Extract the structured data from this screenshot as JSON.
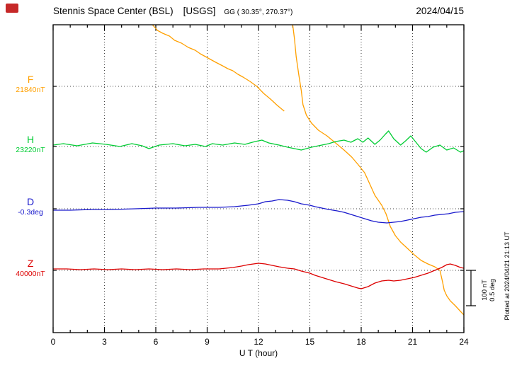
{
  "header": {
    "station": "Stennis Space Center (BSL)",
    "agency": "[USGS]",
    "coords": "GG ( 30.35°, 270.37°)",
    "date": "2024/04/15"
  },
  "right_margin": {
    "plotted_at": "Plotted at 2024/04/21 21:13 UT",
    "scale_line1": "100 nT",
    "scale_line2": "0.5 deg"
  },
  "chart_data": {
    "type": "line",
    "title": "Stennis Space Center (BSL) [USGS] magnetogram 2024/04/15",
    "xlabel": "U T (hour)",
    "ylabel": "",
    "xlim": [
      0,
      24
    ],
    "x_ticks": [
      0,
      3,
      6,
      9,
      12,
      15,
      18,
      21,
      24
    ],
    "x_minor_tick_hours": 1,
    "grid": "dotted",
    "legend_position": "left-margin",
    "scale_bar": {
      "nT": 100,
      "deg": 0.5
    },
    "series": [
      {
        "name": "F",
        "label": "F",
        "unit": "nT",
        "baseline_label": "21840nT",
        "baseline_value": 21840,
        "color": "#ffa000",
        "segments": [
          [
            [
              5.8,
              174
            ],
            [
              6.1,
              158
            ],
            [
              6.4,
              150
            ],
            [
              6.8,
              142
            ],
            [
              7.1,
              130
            ],
            [
              7.5,
              122
            ],
            [
              7.9,
              110
            ],
            [
              8.3,
              102
            ],
            [
              8.6,
              92
            ],
            [
              8.9,
              84
            ],
            [
              9.2,
              76
            ],
            [
              9.5,
              68
            ],
            [
              9.9,
              58
            ],
            [
              10.2,
              50
            ],
            [
              10.5,
              44
            ],
            [
              10.8,
              34
            ],
            [
              11.1,
              26
            ],
            [
              11.5,
              14
            ],
            [
              11.9,
              0
            ],
            [
              12.3,
              -20
            ],
            [
              12.7,
              -36
            ],
            [
              13.1,
              -54
            ],
            [
              13.5,
              -70
            ]
          ],
          [
            [
              14.0,
              174
            ],
            [
              14.1,
              134
            ],
            [
              14.2,
              84
            ],
            [
              14.35,
              34
            ],
            [
              14.5,
              -12
            ],
            [
              14.6,
              -52
            ],
            [
              14.8,
              -82
            ],
            [
              15.1,
              -104
            ],
            [
              15.5,
              -124
            ],
            [
              16.0,
              -140
            ],
            [
              16.5,
              -160
            ],
            [
              17.0,
              -180
            ],
            [
              17.45,
              -200
            ],
            [
              17.8,
              -220
            ],
            [
              18.2,
              -244
            ],
            [
              18.5,
              -276
            ],
            [
              18.8,
              -308
            ],
            [
              19.2,
              -336
            ],
            [
              19.45,
              -360
            ],
            [
              19.7,
              -396
            ],
            [
              20.0,
              -422
            ],
            [
              20.3,
              -440
            ],
            [
              20.7,
              -458
            ],
            [
              21.1,
              -476
            ],
            [
              21.5,
              -492
            ],
            [
              21.9,
              -502
            ],
            [
              22.3,
              -510
            ],
            [
              22.6,
              -520
            ],
            [
              22.75,
              -552
            ],
            [
              22.85,
              -576
            ],
            [
              23.0,
              -592
            ],
            [
              23.2,
              -606
            ],
            [
              23.5,
              -620
            ],
            [
              23.8,
              -636
            ],
            [
              24.0,
              -646
            ]
          ]
        ]
      },
      {
        "name": "H",
        "label": "H",
        "unit": "nT",
        "baseline_label": "23220nT",
        "baseline_value": 23220,
        "color": "#00cc33",
        "segments": [
          [
            [
              0,
              4
            ],
            [
              0.6,
              8
            ],
            [
              1.4,
              2
            ],
            [
              2.3,
              10
            ],
            [
              3.1,
              6
            ],
            [
              3.9,
              0
            ],
            [
              4.6,
              8
            ],
            [
              5.2,
              2
            ],
            [
              5.6,
              -6
            ],
            [
              6.2,
              4
            ],
            [
              7.0,
              8
            ],
            [
              7.7,
              2
            ],
            [
              8.3,
              6
            ],
            [
              8.9,
              0
            ],
            [
              9.3,
              8
            ],
            [
              9.9,
              4
            ],
            [
              10.6,
              10
            ],
            [
              11.2,
              6
            ],
            [
              11.8,
              14
            ],
            [
              12.2,
              18
            ],
            [
              12.6,
              10
            ],
            [
              13.2,
              4
            ],
            [
              13.7,
              -2
            ],
            [
              14.1,
              -6
            ],
            [
              14.5,
              -10
            ],
            [
              15.1,
              -2
            ],
            [
              15.7,
              4
            ],
            [
              16.1,
              8
            ],
            [
              16.5,
              14
            ],
            [
              17.0,
              18
            ],
            [
              17.4,
              12
            ],
            [
              17.8,
              22
            ],
            [
              18.1,
              12
            ],
            [
              18.4,
              24
            ],
            [
              18.8,
              6
            ],
            [
              19.1,
              18
            ],
            [
              19.4,
              34
            ],
            [
              19.6,
              44
            ],
            [
              19.9,
              22
            ],
            [
              20.3,
              4
            ],
            [
              20.6,
              16
            ],
            [
              20.9,
              30
            ],
            [
              21.2,
              12
            ],
            [
              21.5,
              -6
            ],
            [
              21.8,
              -16
            ],
            [
              22.2,
              -2
            ],
            [
              22.6,
              4
            ],
            [
              23.0,
              -10
            ],
            [
              23.4,
              -4
            ],
            [
              23.8,
              -16
            ],
            [
              24,
              -12
            ]
          ]
        ]
      },
      {
        "name": "D",
        "label": "D",
        "unit": "deg",
        "baseline_label": "-0.3deg",
        "baseline_value": -0.3,
        "color": "#1818cc",
        "segments": [
          [
            [
              0,
              -0.02
            ],
            [
              1.0,
              -0.02
            ],
            [
              2.3,
              -0.01
            ],
            [
              3.5,
              -0.01
            ],
            [
              4.8,
              0.0
            ],
            [
              6.0,
              0.01
            ],
            [
              7.2,
              0.01
            ],
            [
              8.5,
              0.02
            ],
            [
              9.7,
              0.02
            ],
            [
              10.6,
              0.03
            ],
            [
              11.4,
              0.05
            ],
            [
              12.0,
              0.07
            ],
            [
              12.4,
              0.1
            ],
            [
              12.8,
              0.11
            ],
            [
              13.2,
              0.13
            ],
            [
              13.7,
              0.12
            ],
            [
              14.1,
              0.1
            ],
            [
              14.5,
              0.07
            ],
            [
              15.0,
              0.05
            ],
            [
              15.3,
              0.03
            ],
            [
              15.7,
              0.01
            ],
            [
              16.1,
              -0.01
            ],
            [
              16.6,
              -0.03
            ],
            [
              17.0,
              -0.05
            ],
            [
              17.4,
              -0.08
            ],
            [
              17.8,
              -0.11
            ],
            [
              18.2,
              -0.14
            ],
            [
              18.6,
              -0.17
            ],
            [
              19.0,
              -0.19
            ],
            [
              19.5,
              -0.2
            ],
            [
              19.9,
              -0.19
            ],
            [
              20.3,
              -0.18
            ],
            [
              20.7,
              -0.16
            ],
            [
              21.1,
              -0.14
            ],
            [
              21.5,
              -0.12
            ],
            [
              21.9,
              -0.11
            ],
            [
              22.3,
              -0.09
            ],
            [
              22.7,
              -0.08
            ],
            [
              23.1,
              -0.07
            ],
            [
              23.5,
              -0.05
            ],
            [
              24,
              -0.04
            ]
          ]
        ]
      },
      {
        "name": "Z",
        "label": "Z",
        "unit": "nT",
        "baseline_label": "40000nT",
        "baseline_value": 40000,
        "color": "#dd0000",
        "segments": [
          [
            [
              0,
              4
            ],
            [
              0.8,
              4
            ],
            [
              1.6,
              2
            ],
            [
              2.4,
              4
            ],
            [
              3.2,
              2
            ],
            [
              4.0,
              4
            ],
            [
              4.8,
              2
            ],
            [
              5.6,
              4
            ],
            [
              6.4,
              2
            ],
            [
              7.2,
              4
            ],
            [
              8.0,
              2
            ],
            [
              8.8,
              4
            ],
            [
              9.7,
              4
            ],
            [
              10.5,
              8
            ],
            [
              11.0,
              12
            ],
            [
              11.4,
              16
            ],
            [
              12.0,
              20
            ],
            [
              12.4,
              18
            ],
            [
              12.8,
              14
            ],
            [
              13.2,
              10
            ],
            [
              13.7,
              6
            ],
            [
              14.1,
              4
            ],
            [
              14.5,
              -2
            ],
            [
              15.0,
              -8
            ],
            [
              15.3,
              -14
            ],
            [
              15.7,
              -20
            ],
            [
              16.1,
              -26
            ],
            [
              16.5,
              -32
            ],
            [
              17.0,
              -38
            ],
            [
              17.4,
              -44
            ],
            [
              17.8,
              -50
            ],
            [
              18.0,
              -52
            ],
            [
              18.4,
              -46
            ],
            [
              18.8,
              -36
            ],
            [
              19.2,
              -30
            ],
            [
              19.6,
              -28
            ],
            [
              19.9,
              -30
            ],
            [
              20.3,
              -28
            ],
            [
              20.7,
              -24
            ],
            [
              21.1,
              -20
            ],
            [
              21.5,
              -14
            ],
            [
              21.9,
              -8
            ],
            [
              22.3,
              0
            ],
            [
              22.7,
              8
            ],
            [
              23.0,
              16
            ],
            [
              23.2,
              18
            ],
            [
              23.5,
              14
            ],
            [
              23.8,
              8
            ],
            [
              24,
              6
            ]
          ]
        ]
      }
    ]
  }
}
